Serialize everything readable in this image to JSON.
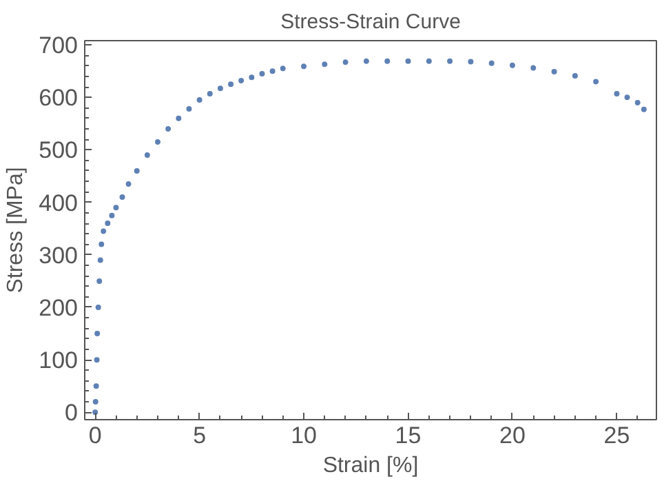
{
  "chart_data": {
    "type": "scatter",
    "title": "Stress-Strain Curve",
    "xlabel": "Strain [%]",
    "ylabel": "Stress [MPa]",
    "x": [
      0,
      0.02,
      0.05,
      0.08,
      0.1,
      0.15,
      0.2,
      0.25,
      0.3,
      0.4,
      0.6,
      0.8,
      1.0,
      1.3,
      1.6,
      2.0,
      2.5,
      3.0,
      3.5,
      4.0,
      4.5,
      5.0,
      5.5,
      6.0,
      6.5,
      7.0,
      7.5,
      8.0,
      8.5,
      9.0,
      10,
      11,
      12,
      13,
      14,
      15,
      16,
      17,
      18,
      19,
      20,
      21,
      22,
      23,
      24,
      25,
      25.5,
      26,
      26.3
    ],
    "series": [
      {
        "color": "#5e81b5",
        "values": [
          0,
          20,
          50,
          100,
          150,
          200,
          250,
          290,
          320,
          345,
          360,
          375,
          390,
          410,
          435,
          460,
          490,
          515,
          540,
          560,
          578,
          595,
          607,
          617,
          625,
          632,
          638,
          645,
          650,
          655,
          659,
          663,
          667,
          669,
          669,
          669,
          669,
          669,
          668,
          665,
          661,
          656,
          649,
          641,
          630,
          607,
          600,
          590,
          577
        ]
      }
    ],
    "xlim": [
      -0.5,
      26.9
    ],
    "ylim": [
      -14,
      708
    ],
    "xticks": [
      0,
      5,
      10,
      15,
      20,
      25
    ],
    "yticks": [
      0,
      100,
      200,
      300,
      400,
      500,
      600,
      700
    ],
    "marker": "circle",
    "grid": false
  }
}
